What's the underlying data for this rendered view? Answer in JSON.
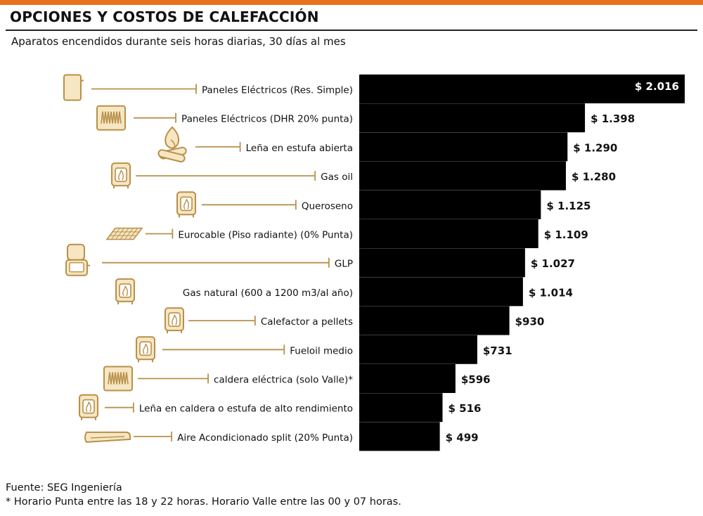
{
  "header": {
    "title": "OPCIONES Y COSTOS DE CALEFACCIÓN",
    "subtitle": "Aparatos encendidos durante seis horas diarias, 30 días al mes"
  },
  "footer": {
    "source": "Fuente: SEG Ingeniería",
    "note": "* Horario Punta entre las 18 y 22 horas. Horario Valle entre las 00 y 07 horas."
  },
  "colors": {
    "bar": "#000000",
    "accent": "#e8731c",
    "icon": "#b8904a",
    "icon_fill": "#f6e6c2"
  },
  "chart_data": {
    "type": "bar",
    "orientation": "horizontal",
    "title": "OPCIONES Y COSTOS DE CALEFACCIÓN",
    "subtitle": "Aparatos encendidos durante seis horas diarias, 30 días al mes",
    "xlim": [
      0,
      2016
    ],
    "categories": [
      "Paneles Eléctricos (Res. Simple)",
      "Paneles Eléctricos (DHR 20% punta)",
      "Leña en estufa abierta",
      "Gas oil",
      "Queroseno",
      "Eurocable (Piso radiante) (0% Punta)",
      "GLP",
      "Gas natural (600 a 1200 m3/al año)",
      "Calefactor a pellets",
      "Fueloil medio",
      "caldera eléctrica (solo Valle)*",
      "Leña en caldera o estufa de alto rendimiento",
      "Aire Acondicionado split (20% Punta)"
    ],
    "values": [
      2016,
      1398,
      1290,
      1280,
      1125,
      1109,
      1027,
      1014,
      930,
      731,
      596,
      516,
      499
    ],
    "value_labels": [
      "$ 2.016",
      "$ 1.398",
      "$ 1.290",
      "$ 1.280",
      "$ 1.125",
      "$ 1.109",
      "$ 1.027",
      "$ 1.014",
      "$930",
      "$731",
      "$596",
      "$ 516",
      "$ 499"
    ],
    "icons": [
      "electric-panel-icon",
      "electric-heater-icon",
      "firewood-icon",
      "stove-icon",
      "stove-icon",
      "floor-grid-icon",
      "gas-heater-icon",
      "stove-icon",
      "stove-icon",
      "stove-icon",
      "electric-heater-icon",
      "stove-icon",
      "air-conditioner-icon"
    ]
  }
}
